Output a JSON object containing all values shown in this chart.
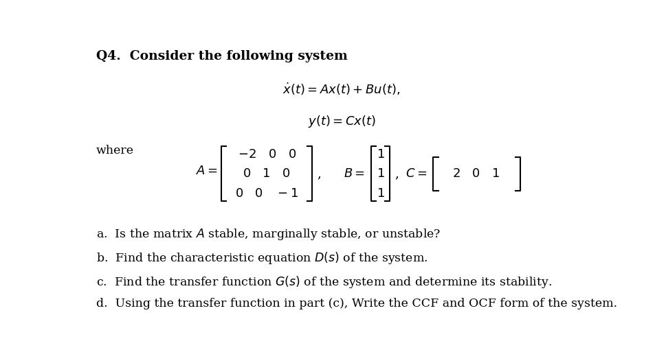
{
  "title_text": "Q4.  Consider the following system",
  "eq1": "$\\dot{x}(t) = Ax(t) + Bu(t),$",
  "eq2": "$y(t) = Cx(t)$",
  "where_text": "where",
  "part_a": "a.  Is the matrix $A$ stable, marginally stable, or unstable?",
  "part_b": "b.  Find the characteristic equation $D(s)$ of the system.",
  "part_c": "c.  Find the transfer function $G(s)$ of the system and determine its stability.",
  "part_d": "d.  Using the transfer function in part (c), Write the CCF and OCF form of the system.",
  "bg_color": "#ffffff",
  "text_color": "#000000",
  "font_size_title": 13.5,
  "font_size_eq": 13,
  "font_size_body": 12.5,
  "font_size_matrix": 13
}
